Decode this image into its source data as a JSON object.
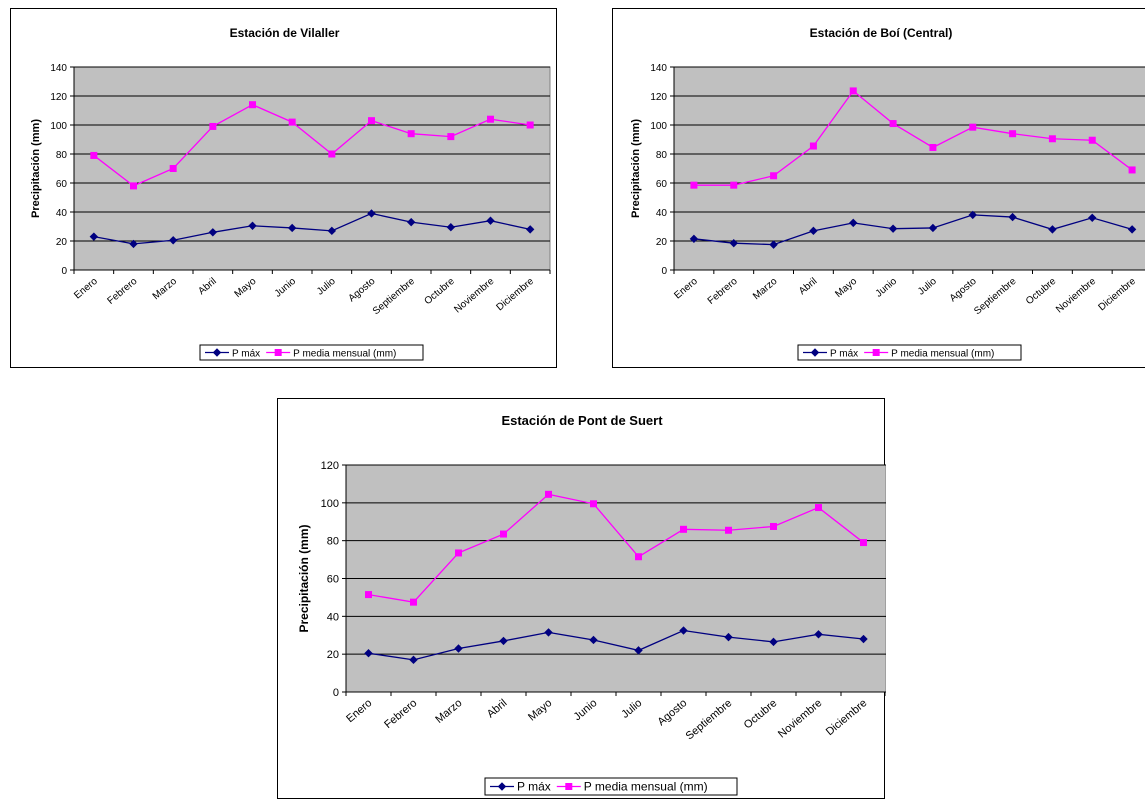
{
  "colors": {
    "plot_bg": "#C0C0C0",
    "p_max": "#000080",
    "p_media": "#FF00FF",
    "grid": "#000000"
  },
  "chart_data": [
    {
      "type": "line",
      "title": "Estación de Vilaller",
      "ylabel": "Precipitación (mm)",
      "xlabel": "",
      "ylim": [
        0,
        140
      ],
      "yticks": [
        0,
        20,
        40,
        60,
        80,
        100,
        120,
        140
      ],
      "grid": true,
      "legend_position": "bottom",
      "categories": [
        "Enero",
        "Febrero",
        "Marzo",
        "Abril",
        "Mayo",
        "Junio",
        "Julio",
        "Agosto",
        "Septiembre",
        "Octubre",
        "Noviembre",
        "Diciembre"
      ],
      "series": [
        {
          "name": "P máx",
          "marker": "diamond",
          "values": [
            23,
            18,
            20.5,
            26,
            30.5,
            29,
            27,
            39,
            33,
            29.5,
            34,
            28
          ]
        },
        {
          "name": "P media mensual (mm)",
          "marker": "square",
          "values": [
            79,
            58,
            70,
            99,
            114,
            102,
            80,
            103,
            94,
            92,
            104,
            100
          ]
        }
      ]
    },
    {
      "type": "line",
      "title": "Estación de Boí (Central)",
      "ylabel": "Precipitación (mm)",
      "xlabel": "",
      "ylim": [
        0,
        140
      ],
      "yticks": [
        0,
        20,
        40,
        60,
        80,
        100,
        120,
        140
      ],
      "grid": true,
      "legend_position": "bottom",
      "categories": [
        "Enero",
        "Febrero",
        "Marzo",
        "Abril",
        "Mayo",
        "Junio",
        "Julio",
        "Agosto",
        "Septiembre",
        "Octubre",
        "Noviembre",
        "Diciembre"
      ],
      "series": [
        {
          "name": "P máx",
          "marker": "diamond",
          "values": [
            21.5,
            18.5,
            17.5,
            27,
            32.5,
            28.5,
            29,
            38,
            36.5,
            28,
            36,
            28
          ]
        },
        {
          "name": "P media mensual (mm)",
          "marker": "square",
          "values": [
            58.5,
            58.5,
            65,
            85.5,
            123.5,
            101,
            84.5,
            98.5,
            94,
            90.5,
            89.5,
            69
          ]
        }
      ]
    },
    {
      "type": "line",
      "title": "Estación de Pont de Suert",
      "ylabel": "Precipitación (mm)",
      "xlabel": "",
      "ylim": [
        0,
        120
      ],
      "yticks": [
        0,
        20,
        40,
        60,
        80,
        100,
        120
      ],
      "grid": true,
      "legend_position": "bottom",
      "categories": [
        "Enero",
        "Febrero",
        "Marzo",
        "Abril",
        "Mayo",
        "Junio",
        "Julio",
        "Agosto",
        "Septiembre",
        "Octubre",
        "Noviembre",
        "Diciembre"
      ],
      "series": [
        {
          "name": "P máx",
          "marker": "diamond",
          "values": [
            20.5,
            17,
            23,
            27,
            31.5,
            27.5,
            22,
            32.5,
            29,
            26.5,
            30.5,
            28
          ]
        },
        {
          "name": "P media mensual (mm)",
          "marker": "square",
          "values": [
            51.5,
            47.5,
            73.5,
            83.5,
            104.5,
            99.5,
            71.5,
            86,
            85.5,
            87.5,
            97.5,
            79
          ]
        }
      ]
    }
  ]
}
